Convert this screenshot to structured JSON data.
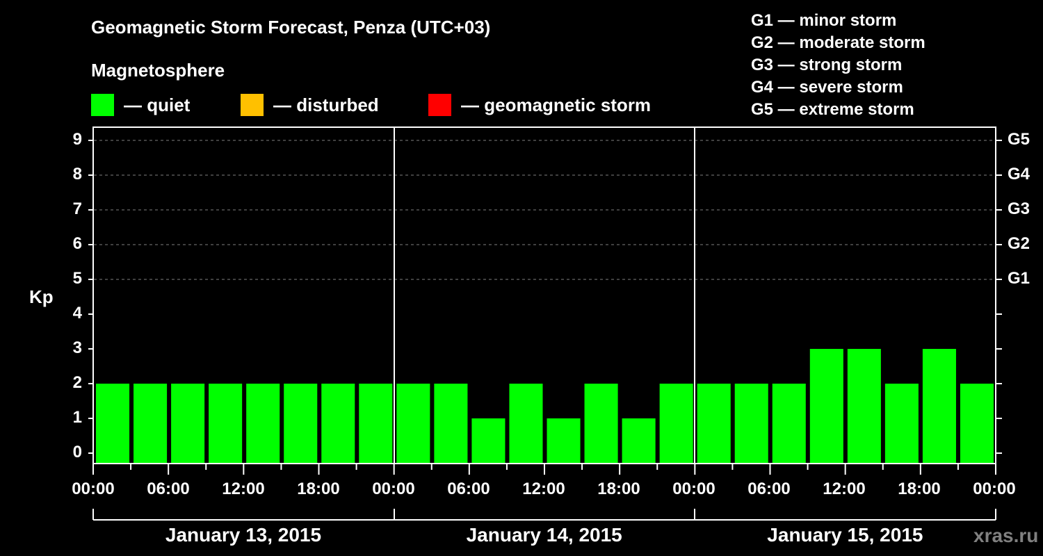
{
  "header": {
    "title": "Geomagnetic Storm Forecast, Penza (UTC+03)",
    "subtitle": "Magnetosphere"
  },
  "legend": {
    "items": [
      {
        "label": "— quiet",
        "color": "#00ff00"
      },
      {
        "label": "— disturbed",
        "color": "#ffc000"
      },
      {
        "label": "— geomagnetic storm",
        "color": "#ff0000"
      }
    ]
  },
  "g_scale": {
    "items": [
      "G1 — minor storm",
      "G2 — moderate storm",
      "G3 — strong storm",
      "G4 — severe storm",
      "G5 — extreme storm"
    ]
  },
  "axes": {
    "ylabel": "Kp",
    "yticks": [
      "0",
      "1",
      "2",
      "3",
      "4",
      "5",
      "6",
      "7",
      "8",
      "9"
    ],
    "right_labels": [
      {
        "label": "G1",
        "kp": 5
      },
      {
        "label": "G2",
        "kp": 6
      },
      {
        "label": "G3",
        "kp": 7
      },
      {
        "label": "G4",
        "kp": 8
      },
      {
        "label": "G5",
        "kp": 9
      }
    ],
    "xticks": [
      "00:00",
      "06:00",
      "12:00",
      "18:00",
      "00:00",
      "06:00",
      "12:00",
      "18:00",
      "00:00",
      "06:00",
      "12:00",
      "18:00",
      "00:00"
    ],
    "days": [
      "January 13, 2015",
      "January 14, 2015",
      "January 15, 2015"
    ]
  },
  "watermark": "xras.ru",
  "chart_data": {
    "type": "bar",
    "title": "Geomagnetic Storm Forecast, Penza (UTC+03)",
    "subtitle": "Magnetosphere",
    "xlabel": "",
    "ylabel": "Kp",
    "ylim": [
      0,
      9
    ],
    "grid": "dashed horizontal at Kp 5-9",
    "categories": [
      "Jan 13 00-03",
      "Jan 13 03-06",
      "Jan 13 06-09",
      "Jan 13 09-12",
      "Jan 13 12-15",
      "Jan 13 15-18",
      "Jan 13 18-21",
      "Jan 13 21-24",
      "Jan 14 00-03",
      "Jan 14 03-06",
      "Jan 14 06-09",
      "Jan 14 09-12",
      "Jan 14 12-15",
      "Jan 14 15-18",
      "Jan 14 18-21",
      "Jan 14 21-24",
      "Jan 15 00-03",
      "Jan 15 03-06",
      "Jan 15 06-09",
      "Jan 15 09-12",
      "Jan 15 12-15",
      "Jan 15 15-18",
      "Jan 15 18-21",
      "Jan 15 21-24"
    ],
    "values": [
      2,
      2,
      2,
      2,
      2,
      2,
      2,
      2,
      2,
      2,
      1,
      2,
      1,
      2,
      1,
      2,
      2,
      2,
      2,
      3,
      3,
      2,
      3,
      2
    ],
    "bar_color": "#00ff00",
    "legend": [
      "quiet",
      "disturbed",
      "geomagnetic storm"
    ],
    "legend_colors": [
      "#00ff00",
      "#ffc000",
      "#ff0000"
    ],
    "right_axis": {
      "G1": 5,
      "G2": 6,
      "G3": 7,
      "G4": 8,
      "G5": 9
    }
  }
}
